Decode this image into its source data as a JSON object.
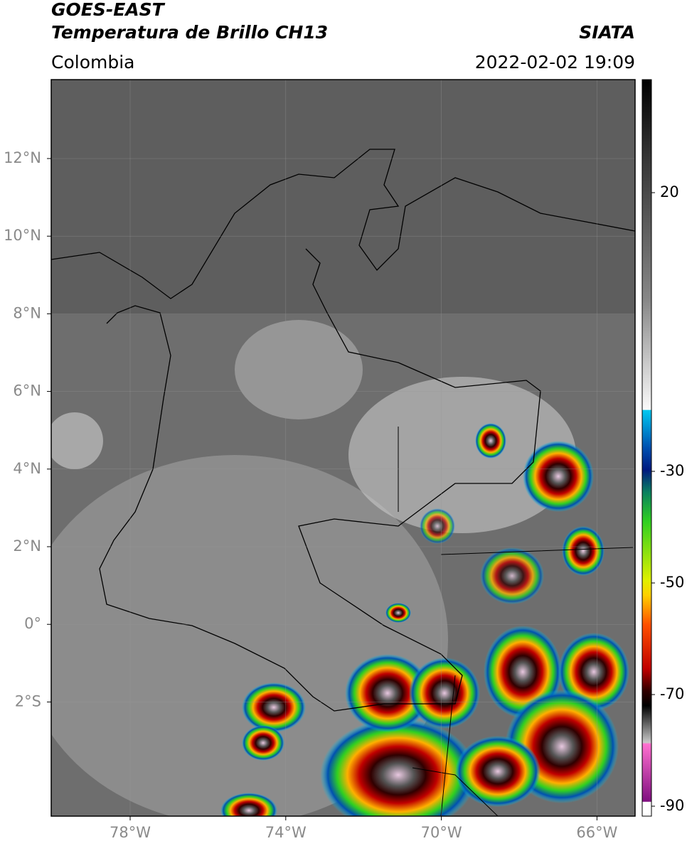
{
  "header": {
    "satellite": "GOES-EAST",
    "product": "Temperatura de Brillo CH13",
    "source": "SIATA",
    "region": "Colombia",
    "timestamp": "2022-02-02 19:09"
  },
  "map": {
    "lat_labels": [
      "12°N",
      "10°N",
      "8°N",
      "6°N",
      "4°N",
      "2°N",
      "0°",
      "2°S"
    ],
    "lon_labels": [
      "78°W",
      "74°W",
      "70°W",
      "66°W"
    ]
  },
  "colorbar": {
    "labels": [
      "20",
      "-30",
      "-50",
      "-70",
      "-90"
    ]
  }
}
